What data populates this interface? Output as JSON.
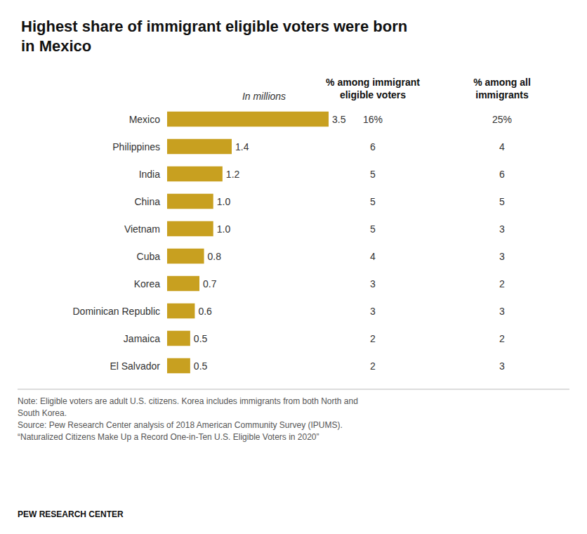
{
  "chart_data": {
    "type": "bar",
    "orientation": "horizontal",
    "title": "Highest share of immigrant eligible voters were born\nin Mexico",
    "categories": [
      "Mexico",
      "Philippines",
      "India",
      "China",
      "Vietnam",
      "Cuba",
      "Korea",
      "Dominican Republic",
      "Jamaica",
      "El Salvador"
    ],
    "values": [
      3.5,
      1.4,
      1.2,
      1.0,
      1.0,
      0.8,
      0.7,
      0.6,
      0.5,
      0.5
    ],
    "value_labels": [
      "3.5",
      "1.4",
      "1.2",
      "1.0",
      "1.0",
      "0.8",
      "0.7",
      "0.6",
      "0.5",
      "0.5"
    ],
    "color": "#C8A020",
    "data_labels": true,
    "xlim": [
      0,
      4.2
    ],
    "tick_labels": "y",
    "grid": false,
    "value_header": "In millions",
    "columns": [
      {
        "header": "% among immigrant\neligible voters",
        "values": [
          16,
          6,
          5,
          5,
          5,
          4,
          3,
          3,
          2,
          2
        ],
        "value_labels": [
          "16%",
          "6",
          "5",
          "5",
          "5",
          "4",
          "3",
          "3",
          "2",
          "2"
        ]
      },
      {
        "header": "% among all\nimmigrants",
        "values": [
          25,
          4,
          6,
          5,
          3,
          3,
          2,
          3,
          2,
          3
        ],
        "value_labels": [
          "25%",
          "4",
          "6",
          "5",
          "3",
          "3",
          "2",
          "3",
          "2",
          "3"
        ]
      }
    ],
    "note": "Note: Eligible voters are adult U.S. citizens. Korea includes immigrants from both North and\nSouth Korea.\nSource: Pew Research Center analysis of 2018 American Community Survey (IPUMS).\n“Naturalized Citizens Make Up a Record One-in-Ten U.S. Eligible Voters in 2020”",
    "source": "PEW RESEARCH CENTER"
  }
}
